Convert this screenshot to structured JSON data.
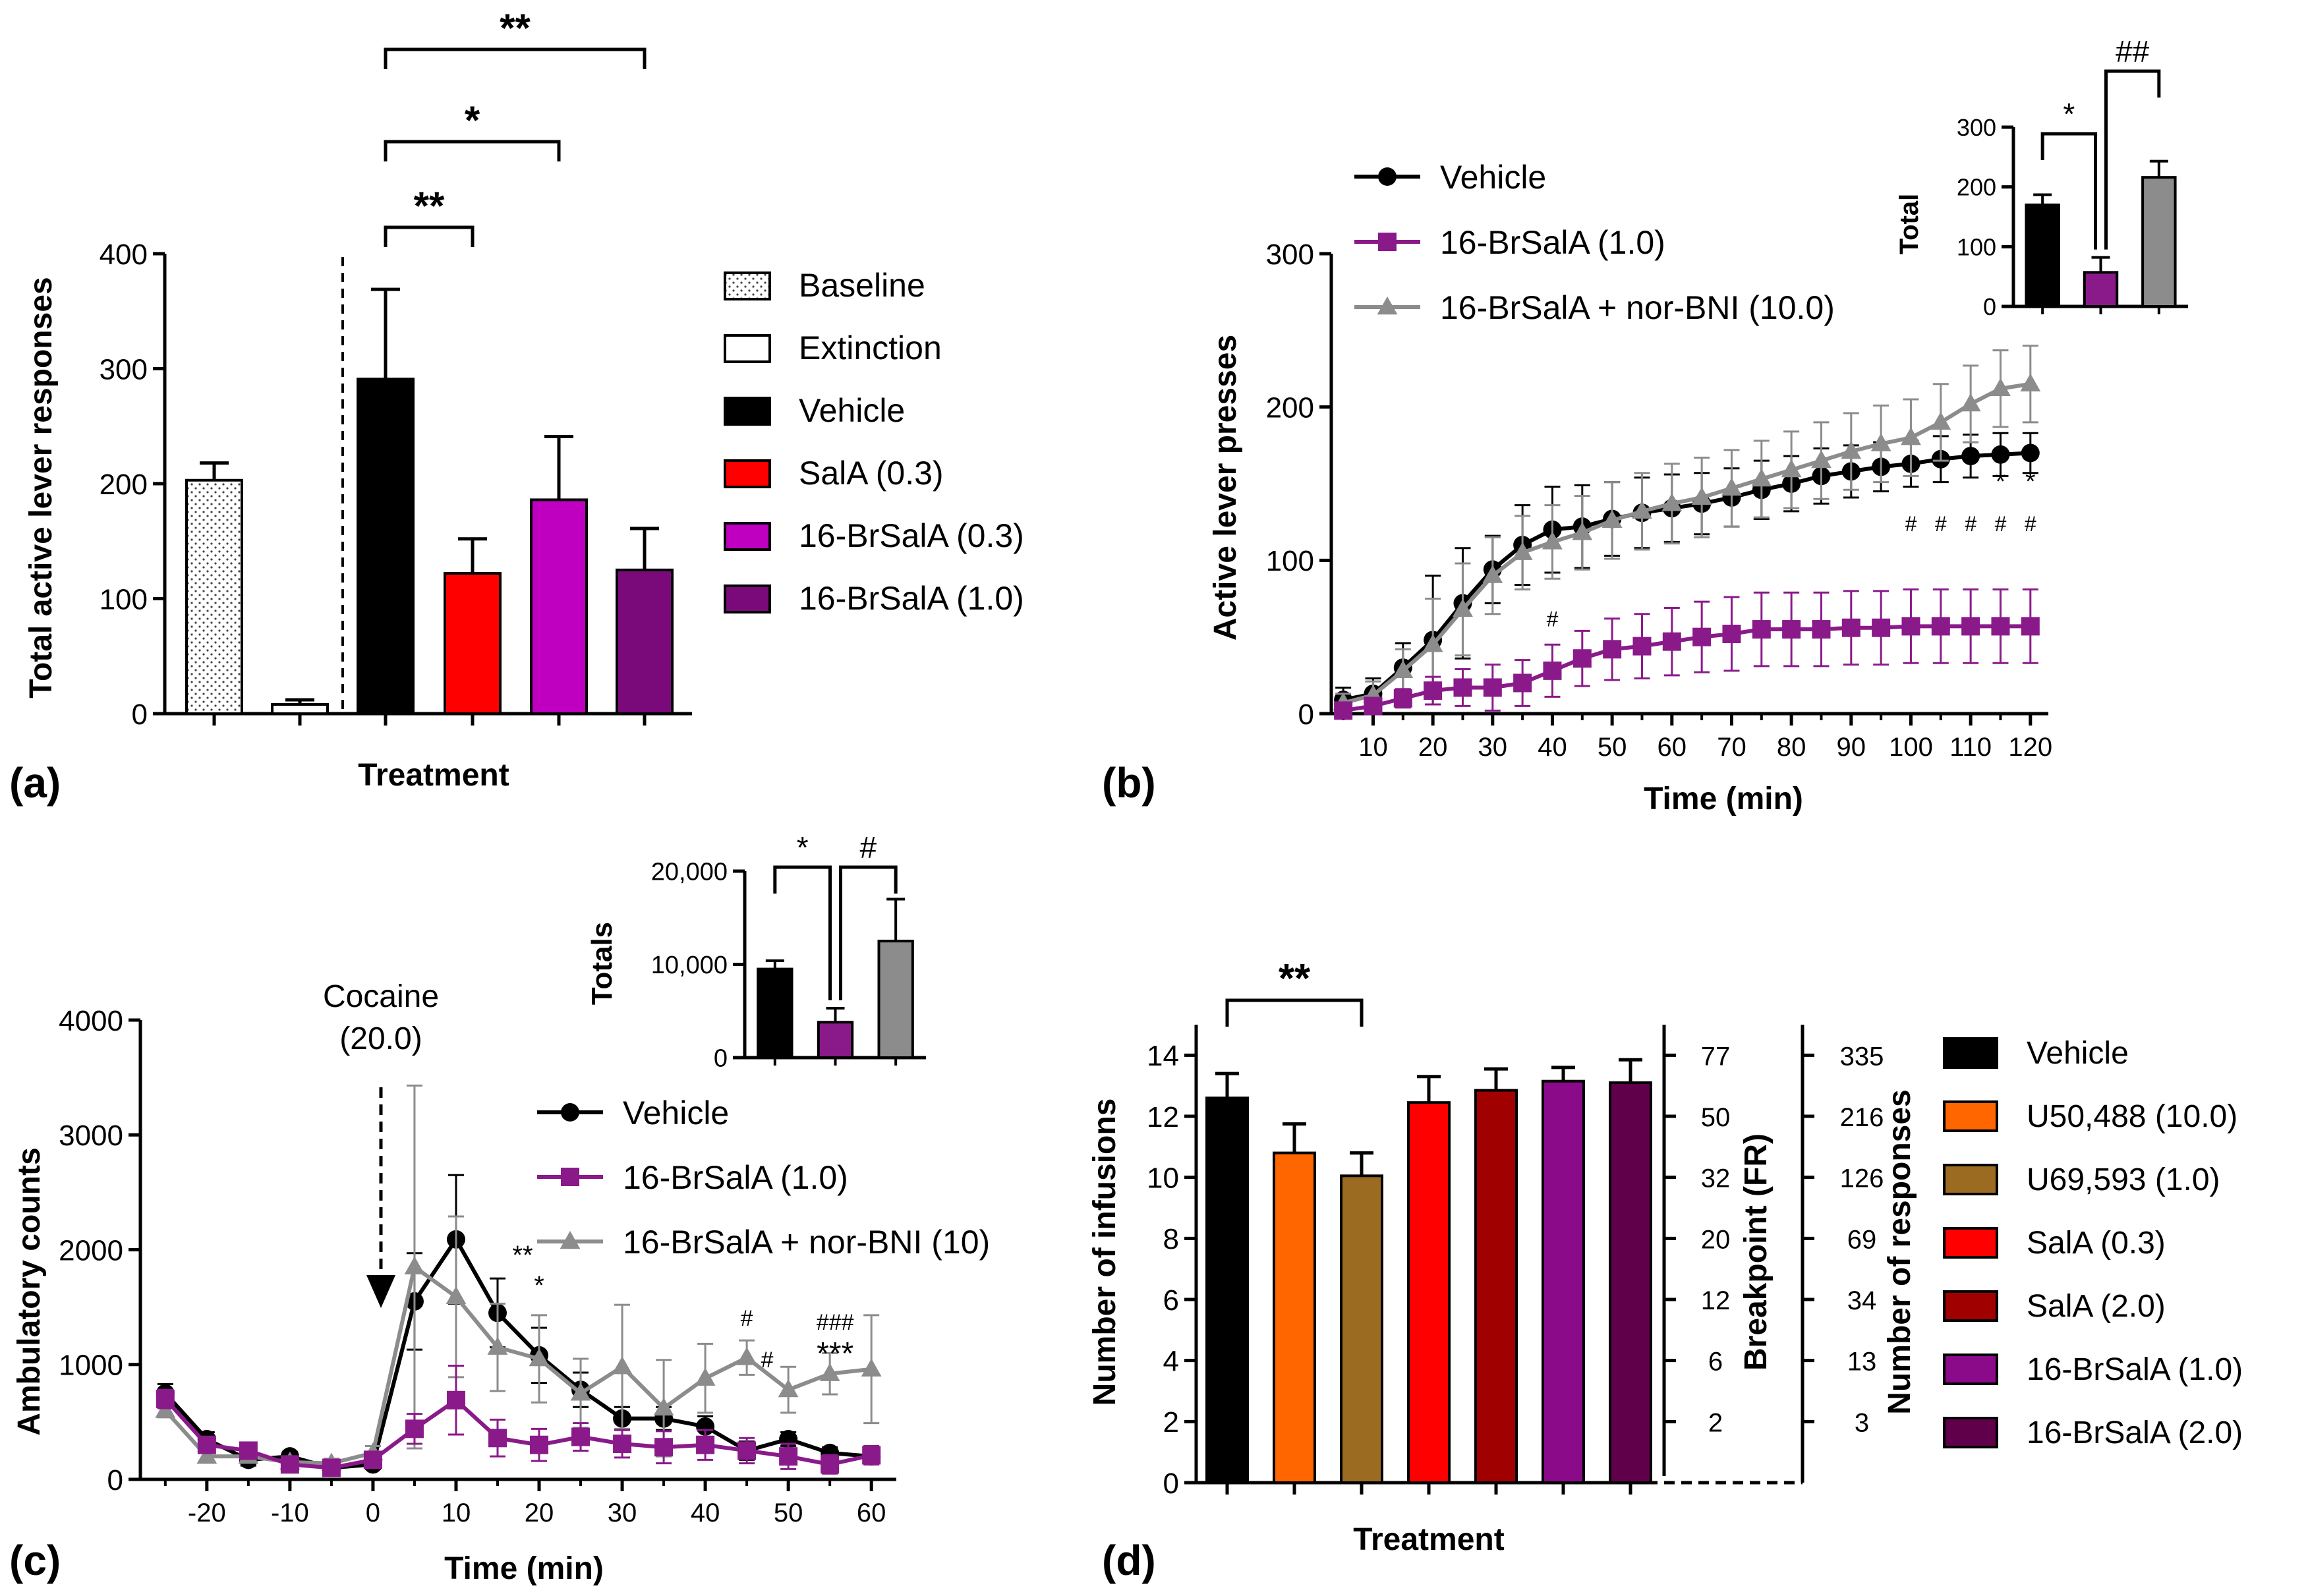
{
  "panel_labels": {
    "a": "(a)",
    "b": "(b)",
    "c": "(c)",
    "d": "(d)"
  },
  "colors": {
    "black": "#000000",
    "red": "#ff0000",
    "magenta": "#c000c0",
    "purple": "#7a0a7a",
    "grey": "#8c8c8c",
    "orange": "#ff6600",
    "brown": "#9c6b22",
    "darkred": "#a00000",
    "purple2": "#8a0a8a",
    "darkpurple": "#60004a"
  },
  "chart_data": [
    {
      "id": "a",
      "type": "bar",
      "ylabel": "Total active lever responses",
      "xlabel": "Treatment",
      "ylim": [
        0,
        400
      ],
      "yticks": [
        0,
        100,
        200,
        300,
        400
      ],
      "bars": [
        {
          "name": "Baseline",
          "value": 203,
          "err": 15,
          "color": "#ffffff",
          "pattern": "dots"
        },
        {
          "name": "Extinction",
          "value": 8,
          "err": 4,
          "color": "#ffffff"
        },
        {
          "name": "Vehicle",
          "value": 291,
          "err": 78,
          "color": "#000000"
        },
        {
          "name": "SalA (0.3)",
          "value": 122,
          "err": 30,
          "color": "#ff0000"
        },
        {
          "name": "16-BrSalA (0.3)",
          "value": 186,
          "err": 55,
          "color": "#c000c0"
        },
        {
          "name": "16-BrSalA (1.0)",
          "value": 125,
          "err": 36,
          "color": "#7a0a7a"
        }
      ],
      "legend": [
        "Baseline",
        "Extinction",
        "Vehicle",
        "SalA (0.3)",
        "16-BrSalA (0.3)",
        "16-BrSalA (1.0)"
      ],
      "significance": [
        {
          "from": 2,
          "to": 3,
          "label": "**"
        },
        {
          "from": 2,
          "to": 4,
          "label": "*"
        },
        {
          "from": 2,
          "to": 5,
          "label": "**"
        }
      ]
    },
    {
      "id": "b",
      "type": "line",
      "ylabel": "Active lever presses",
      "xlabel": "Time (min)",
      "xlim": [
        3,
        123
      ],
      "ylim": [
        0,
        300
      ],
      "xticks": [
        10,
        20,
        30,
        40,
        50,
        60,
        70,
        80,
        90,
        100,
        110,
        120
      ],
      "yticks": [
        0,
        100,
        200,
        300
      ],
      "x": [
        5,
        10,
        15,
        20,
        25,
        30,
        35,
        40,
        45,
        50,
        55,
        60,
        65,
        70,
        75,
        80,
        85,
        90,
        95,
        100,
        105,
        110,
        115,
        120
      ],
      "series": [
        {
          "name": "Vehicle",
          "marker": "circle",
          "color": "#000000",
          "values": [
            9,
            13,
            30,
            48,
            72,
            94,
            110,
            120,
            122,
            127,
            131,
            134,
            137,
            141,
            146,
            150,
            155,
            158,
            161,
            163,
            166,
            168,
            169,
            170
          ],
          "errs": [
            8,
            10,
            16,
            42,
            36,
            22,
            26,
            28,
            27,
            24,
            23,
            22,
            20,
            19,
            19,
            18,
            18,
            17,
            16,
            15,
            15,
            14,
            14,
            13
          ]
        },
        {
          "name": "16-BrSalA (1.0)",
          "marker": "square",
          "color": "#8a1a8a",
          "values": [
            2,
            5,
            10,
            15,
            17,
            17,
            20,
            28,
            36,
            42,
            44,
            47,
            50,
            52,
            55,
            55,
            55,
            56,
            56,
            57,
            57,
            57,
            57,
            57
          ],
          "errs": [
            2,
            4,
            6,
            9,
            12,
            15,
            15,
            17,
            18,
            20,
            21,
            22,
            23,
            24,
            24,
            24,
            24,
            24,
            24,
            24,
            24,
            24,
            24,
            24
          ]
        },
        {
          "name": "16-BrSalA + nor-BNI (10.0)",
          "marker": "triangle",
          "color": "#8c8c8c",
          "values": [
            7,
            12,
            28,
            45,
            68,
            90,
            105,
            112,
            118,
            126,
            132,
            137,
            141,
            147,
            153,
            159,
            165,
            171,
            176,
            180,
            190,
            202,
            212,
            215
          ],
          "errs": [
            6,
            9,
            14,
            30,
            30,
            25,
            24,
            24,
            24,
            25,
            25,
            26,
            26,
            25,
            25,
            25,
            25,
            25,
            25,
            25,
            25,
            25,
            25,
            25
          ]
        }
      ],
      "sig_marks": [
        {
          "x": 40,
          "label": "#"
        },
        {
          "x": 100,
          "label": "#"
        },
        {
          "x": 105,
          "label": "#"
        },
        {
          "x": 110,
          "label": "#"
        },
        {
          "x": 115,
          "label": "#"
        },
        {
          "x": 120,
          "label": "#"
        },
        {
          "x": 115,
          "label": "*"
        },
        {
          "x": 120,
          "label": "*"
        }
      ],
      "inset": {
        "type": "bar",
        "ylabel": "Total",
        "ylim": [
          0,
          300
        ],
        "yticks": [
          0,
          100,
          200,
          300
        ],
        "values": [
          170,
          57,
          216
        ],
        "errs": [
          17,
          25,
          27
        ],
        "colors": [
          "#000000",
          "#8a1a8a",
          "#8c8c8c"
        ],
        "significance": [
          {
            "from": 0,
            "to": 1,
            "label": "*"
          },
          {
            "from": 1,
            "to": 2,
            "label": "##"
          }
        ]
      }
    },
    {
      "id": "c",
      "type": "line",
      "ylabel": "Ambulatory counts",
      "xlabel": "Time (min)",
      "xlim": [
        -28,
        63
      ],
      "ylim": [
        0,
        4000
      ],
      "xticks": [
        -20,
        -10,
        0,
        10,
        20,
        30,
        40,
        50,
        60
      ],
      "yticks": [
        0,
        1000,
        2000,
        3000,
        4000
      ],
      "x": [
        -25,
        -20,
        -15,
        -10,
        -5,
        0,
        5,
        10,
        15,
        20,
        25,
        30,
        35,
        40,
        45,
        50,
        55,
        60
      ],
      "annotation": "Cocaine",
      "annotation2": "(20.0)",
      "series": [
        {
          "name": "Vehicle",
          "marker": "circle",
          "color": "#000000",
          "values": [
            750,
            350,
            170,
            200,
            100,
            130,
            1550,
            2090,
            1450,
            1080,
            780,
            530,
            530,
            460,
            250,
            350,
            230,
            200
          ],
          "errs": [
            80,
            60,
            50,
            40,
            40,
            40,
            420,
            560,
            300,
            240,
            150,
            100,
            100,
            90,
            80,
            60,
            50,
            50
          ]
        },
        {
          "name": "16-BrSalA (1.0)",
          "marker": "square",
          "color": "#8a1a8a",
          "values": [
            700,
            300,
            250,
            130,
            100,
            170,
            440,
            690,
            360,
            300,
            370,
            310,
            280,
            300,
            250,
            200,
            130,
            210
          ],
          "errs": [
            80,
            60,
            50,
            40,
            40,
            50,
            130,
            300,
            160,
            140,
            120,
            120,
            140,
            130,
            110,
            110,
            80,
            80
          ]
        },
        {
          "name": "16-BrSalA + nor-BNI (10)",
          "marker": "triangle",
          "color": "#8c8c8c",
          "values": [
            600,
            200,
            200,
            150,
            140,
            230,
            1850,
            1590,
            1150,
            1050,
            750,
            980,
            620,
            880,
            1060,
            780,
            920,
            960
          ],
          "errs": [
            60,
            50,
            40,
            40,
            40,
            60,
            1580,
            700,
            380,
            380,
            300,
            540,
            420,
            300,
            150,
            200,
            180,
            470
          ]
        }
      ],
      "sig_marks": [
        {
          "x": 15,
          "label": "**",
          "color": "#8a1a8a"
        },
        {
          "x": 20,
          "label": "*",
          "color": "#8a1a8a"
        },
        {
          "x": 45,
          "label": "#",
          "color": "#8a1a8a"
        },
        {
          "x": 50,
          "label": "#",
          "color": "#8a1a8a"
        },
        {
          "x": 55,
          "label": "###",
          "color": "#8a1a8a"
        },
        {
          "x": 55,
          "label": "***",
          "color": "#8c8c8c"
        }
      ],
      "inset": {
        "type": "bar",
        "ylabel": "Totals",
        "ylim": [
          0,
          20000
        ],
        "yticks": [
          "0",
          "10,000",
          "20,000"
        ],
        "values": [
          9500,
          3800,
          12500
        ],
        "errs": [
          900,
          1500,
          4500
        ],
        "colors": [
          "#000000",
          "#8a1a8a",
          "#8c8c8c"
        ],
        "significance": [
          {
            "from": 0,
            "to": 1,
            "label": "*"
          },
          {
            "from": 1,
            "to": 2,
            "label": "#"
          }
        ]
      }
    },
    {
      "id": "d",
      "type": "bar",
      "ylabel": "Number of infusions",
      "ylabel2": "Breakpoint  (FR)",
      "ylabel3": "Number of responses",
      "xlabel": "Treatment",
      "ylim": [
        0,
        15
      ],
      "yticks": [
        0,
        2,
        4,
        6,
        8,
        10,
        12,
        14
      ],
      "breakpoint_ticks": [
        {
          "y": 2,
          "label": "2"
        },
        {
          "y": 4,
          "label": "6"
        },
        {
          "y": 6,
          "label": "12"
        },
        {
          "y": 8,
          "label": "20"
        },
        {
          "y": 10,
          "label": "32"
        },
        {
          "y": 12,
          "label": "50"
        },
        {
          "y": 14,
          "label": "77"
        }
      ],
      "response_ticks": [
        {
          "y": 2,
          "label": "3"
        },
        {
          "y": 4,
          "label": "13"
        },
        {
          "y": 6,
          "label": "34"
        },
        {
          "y": 8,
          "label": "69"
        },
        {
          "y": 10,
          "label": "126"
        },
        {
          "y": 12,
          "label": "216"
        },
        {
          "y": 14,
          "label": "335"
        }
      ],
      "bars": [
        {
          "name": "Vehicle",
          "value": 12.6,
          "err": 0.8,
          "color": "#000000"
        },
        {
          "name": "U50,488 (10.0)",
          "value": 10.8,
          "err": 0.95,
          "color": "#ff6600"
        },
        {
          "name": "U69,593 (1.0)",
          "value": 10.05,
          "err": 0.75,
          "color": "#9c6b22"
        },
        {
          "name": "SalA (0.3)",
          "value": 12.45,
          "err": 0.85,
          "color": "#ff0000"
        },
        {
          "name": "SalA (2.0)",
          "value": 12.85,
          "err": 0.7,
          "color": "#a00000"
        },
        {
          "name": "16-BrSalA (1.0)",
          "value": 13.15,
          "err": 0.45,
          "color": "#8a0a8a"
        },
        {
          "name": "16-BrSalA (2.0)",
          "value": 13.1,
          "err": 0.75,
          "color": "#60004a"
        }
      ],
      "significance": [
        {
          "from": 0,
          "to": 2,
          "label": "**"
        }
      ]
    }
  ]
}
